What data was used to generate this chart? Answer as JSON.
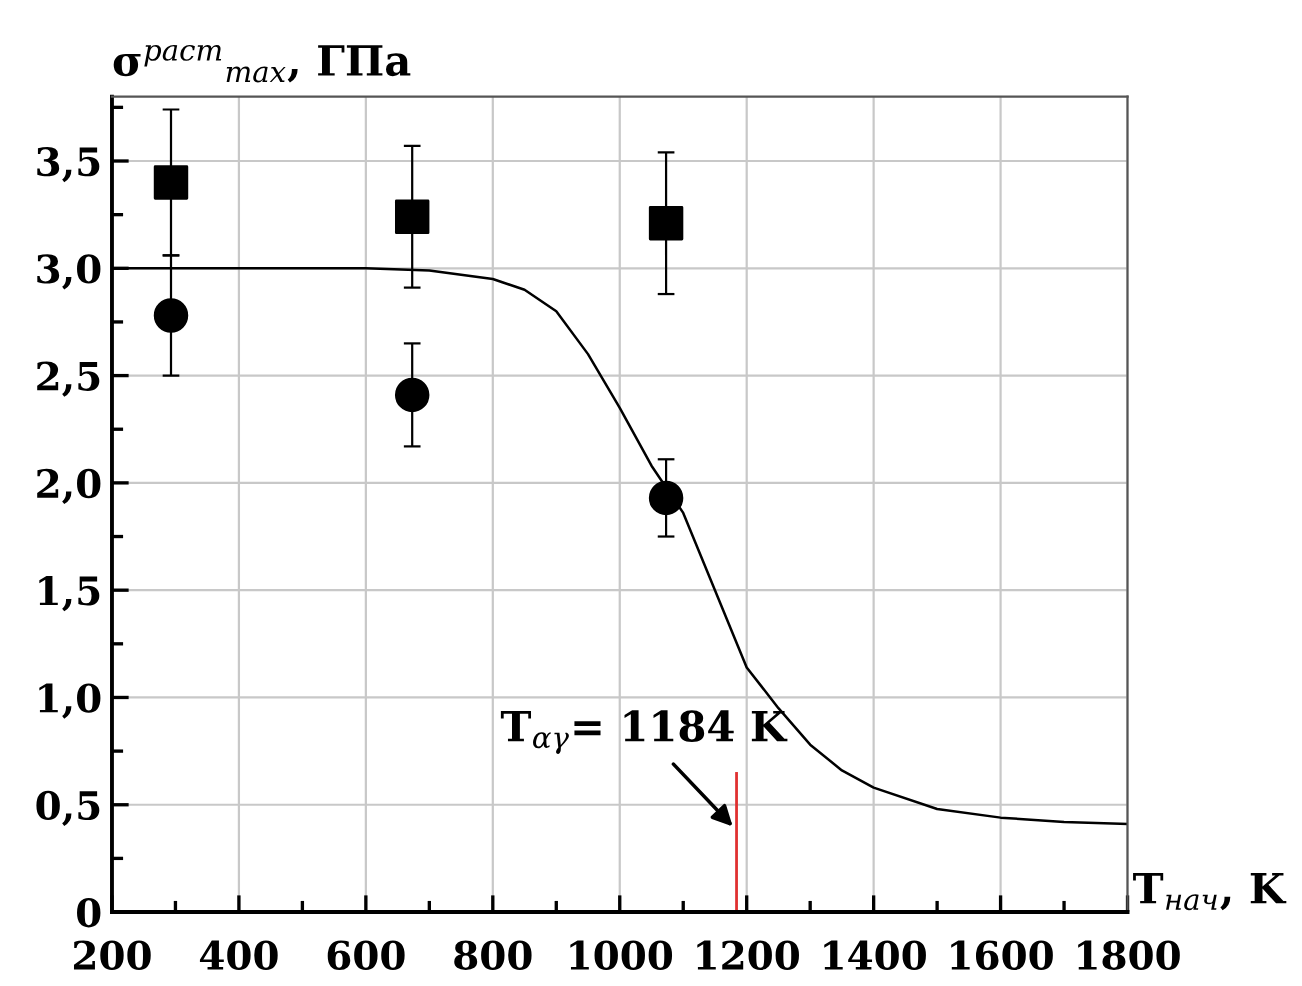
{
  "chart_data": {
    "type": "scatter",
    "ylabel": "σ$^{раст}$$_{max}$, ГПа",
    "xlabel": "T$_{нач}$, K",
    "xlim": [
      200,
      1800
    ],
    "ylim": [
      0,
      3.8
    ],
    "xticks": [
      200,
      400,
      600,
      800,
      1000,
      1200,
      1400,
      1600,
      1800
    ],
    "yticks": [
      0,
      {
        "value": 0.5,
        "label": "0,5"
      },
      {
        "value": 1.0,
        "label": "1,0"
      },
      {
        "value": 1.5,
        "label": "1,5"
      },
      {
        "value": 2.0,
        "label": "2,0"
      },
      {
        "value": 2.5,
        "label": "2,5"
      },
      {
        "value": 3.0,
        "label": "3,0"
      },
      {
        "value": 3.5,
        "label": "3,5"
      }
    ],
    "grid": true,
    "legend": false,
    "series": [
      {
        "type": "line",
        "color": "#000000",
        "marker": "none",
        "line_style": "solid",
        "x": [
          200,
          600,
          700,
          800,
          850,
          900,
          950,
          1000,
          1050,
          1100,
          1150,
          1200,
          1250,
          1300,
          1350,
          1400,
          1500,
          1600,
          1700,
          1800
        ],
        "values": [
          3.0,
          3.0,
          2.99,
          2.95,
          2.9,
          2.8,
          2.6,
          2.35,
          2.08,
          1.86,
          1.5,
          1.14,
          0.95,
          0.78,
          0.66,
          0.58,
          0.48,
          0.44,
          0.42,
          0.41
        ]
      },
      {
        "color": "#000000",
        "marker": "square",
        "x": [
          293,
          673,
          1073
        ],
        "values": [
          3.4,
          3.24,
          3.21
        ],
        "errors": [
          0.34,
          0.33,
          0.33
        ]
      },
      {
        "color": "#000000",
        "marker": "circle",
        "x": [
          293,
          673,
          1073
        ],
        "values": [
          2.78,
          2.41,
          1.93
        ],
        "errors": [
          0.28,
          0.24,
          0.18
        ]
      }
    ],
    "ref_lines": [
      {
        "axis": "x",
        "value": 1184,
        "color": "#e03030"
      }
    ],
    "annotations": [
      {
        "text": "T$_{αγ}$= 1184 K",
        "x": 1184,
        "y": 0.38
      }
    ]
  }
}
